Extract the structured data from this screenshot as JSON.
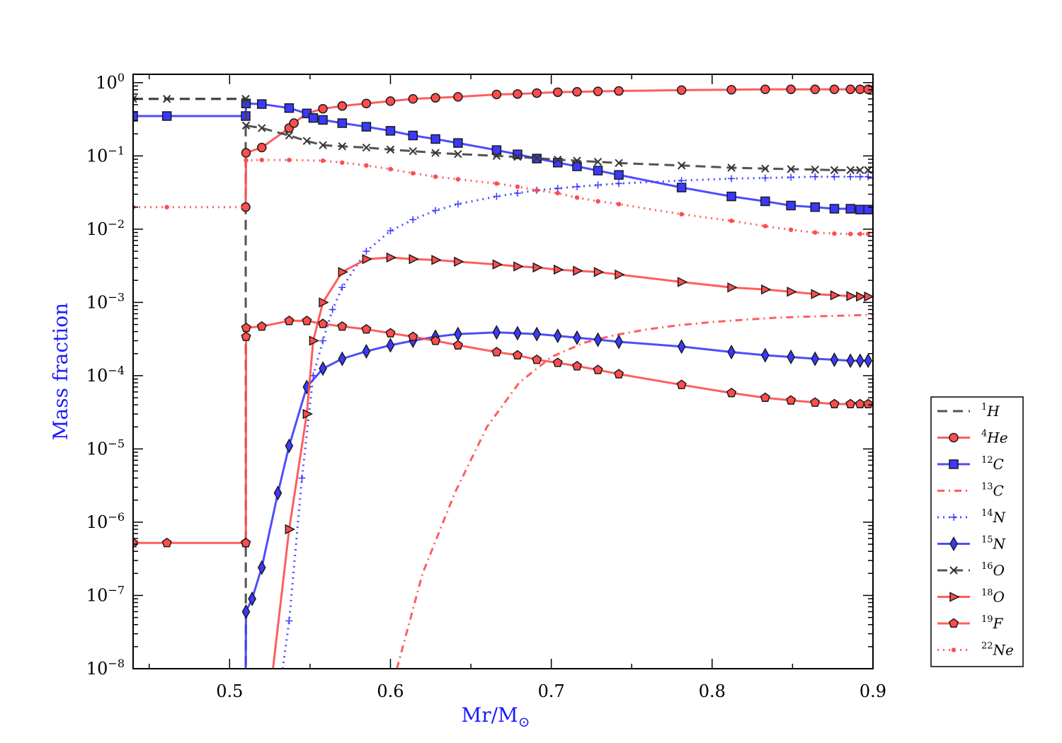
{
  "chart_data": {
    "type": "line",
    "title": "",
    "xlabel": "Mr/M",
    "xlabel_symbol": "⊙",
    "ylabel": "Mass fraction",
    "xlim": [
      0.44,
      0.9
    ],
    "ylim": [
      1e-08,
      1.3
    ],
    "yscale": "log",
    "x_ticks": [
      {
        "v": 0.5,
        "label": "0.5"
      },
      {
        "v": 0.6,
        "label": "0.6"
      },
      {
        "v": 0.7,
        "label": "0.7"
      },
      {
        "v": 0.8,
        "label": "0.8"
      },
      {
        "v": 0.9,
        "label": "0.9"
      }
    ],
    "y_ticks": [
      {
        "exp": 0,
        "label": "10"
      },
      {
        "exp": -1,
        "label": "10"
      },
      {
        "exp": -2,
        "label": "10"
      },
      {
        "exp": -3,
        "label": "10"
      },
      {
        "exp": -4,
        "label": "10"
      },
      {
        "exp": -5,
        "label": "10"
      },
      {
        "exp": -6,
        "label": "10"
      },
      {
        "exp": -7,
        "label": "10"
      },
      {
        "exp": -8,
        "label": "10"
      }
    ],
    "y_tick_exponents": [
      "0",
      "−1",
      "−2",
      "−3",
      "−4",
      "−5",
      "−6",
      "−7",
      "−8"
    ],
    "grid": false,
    "legend_position": "right",
    "series": [
      {
        "name": "H",
        "mass_number": "1",
        "color": "#404040",
        "dash": "dashed",
        "marker": "none",
        "x": [
          0.44,
          0.51,
          0.5101
        ],
        "y": [
          0.6,
          0.6,
          1e-08
        ]
      },
      {
        "name": "He",
        "mass_number": "4",
        "color": "#ff4d4d",
        "dash": "solid",
        "marker": "circle",
        "x": [
          0.51,
          0.5102,
          0.52,
          0.537,
          0.54,
          0.548,
          0.558,
          0.57,
          0.585,
          0.6,
          0.614,
          0.628,
          0.642,
          0.666,
          0.679,
          0.691,
          0.704,
          0.716,
          0.729,
          0.742,
          0.781,
          0.812,
          0.833,
          0.849,
          0.864,
          0.876,
          0.886,
          0.892,
          0.897
        ],
        "y": [
          0.02,
          0.11,
          0.13,
          0.24,
          0.28,
          0.38,
          0.44,
          0.48,
          0.52,
          0.56,
          0.6,
          0.62,
          0.64,
          0.69,
          0.7,
          0.72,
          0.74,
          0.75,
          0.76,
          0.77,
          0.79,
          0.8,
          0.81,
          0.81,
          0.81,
          0.81,
          0.81,
          0.81,
          0.81
        ]
      },
      {
        "name": "C",
        "mass_number": "12",
        "color": "#3a3aff",
        "dash": "solid",
        "marker": "square",
        "x": [
          0.44,
          0.461,
          0.51,
          0.5102,
          0.52,
          0.537,
          0.548,
          0.552,
          0.558,
          0.57,
          0.585,
          0.6,
          0.614,
          0.628,
          0.642,
          0.666,
          0.679,
          0.691,
          0.704,
          0.716,
          0.729,
          0.742,
          0.781,
          0.812,
          0.833,
          0.849,
          0.864,
          0.876,
          0.886,
          0.892,
          0.897
        ],
        "y": [
          0.35,
          0.35,
          0.35,
          0.52,
          0.51,
          0.45,
          0.38,
          0.33,
          0.31,
          0.28,
          0.25,
          0.22,
          0.19,
          0.17,
          0.15,
          0.12,
          0.105,
          0.092,
          0.081,
          0.072,
          0.063,
          0.055,
          0.037,
          0.028,
          0.024,
          0.021,
          0.02,
          0.019,
          0.019,
          0.0185,
          0.0185
        ]
      },
      {
        "name": "C",
        "mass_number": "13",
        "color": "#ff4d4d",
        "dash": "dashdot",
        "marker": "none",
        "x": [
          0.604,
          0.62,
          0.64,
          0.66,
          0.68,
          0.7,
          0.72,
          0.74,
          0.76,
          0.78,
          0.8,
          0.82,
          0.84,
          0.86,
          0.88,
          0.9
        ],
        "y": [
          1e-08,
          2e-07,
          2.5e-06,
          2e-05,
          8e-05,
          0.00018,
          0.00028,
          0.00036,
          0.00043,
          0.00049,
          0.00054,
          0.00058,
          0.00062,
          0.00064,
          0.00066,
          0.00068
        ]
      },
      {
        "name": "N",
        "mass_number": "14",
        "color": "#3a3aff",
        "dash": "dotted",
        "marker": "plus",
        "x": [
          0.533,
          0.537,
          0.545,
          0.552,
          0.558,
          0.564,
          0.57,
          0.585,
          0.6,
          0.614,
          0.628,
          0.642,
          0.666,
          0.679,
          0.691,
          0.704,
          0.716,
          0.729,
          0.742,
          0.781,
          0.812,
          0.833,
          0.849,
          0.864,
          0.876,
          0.886,
          0.892,
          0.897
        ],
        "y": [
          1e-08,
          4.5e-08,
          4e-06,
          0.0001,
          0.0003,
          0.0008,
          0.0016,
          0.005,
          0.0095,
          0.0135,
          0.018,
          0.022,
          0.028,
          0.031,
          0.034,
          0.036,
          0.038,
          0.04,
          0.042,
          0.046,
          0.049,
          0.05,
          0.051,
          0.052,
          0.052,
          0.052,
          0.052,
          0.052
        ]
      },
      {
        "name": "N",
        "mass_number": "15",
        "color": "#3a3aff",
        "dash": "solid",
        "marker": "diamond",
        "x": [
          0.51,
          0.5102,
          0.514,
          0.52,
          0.53,
          0.537,
          0.548,
          0.558,
          0.57,
          0.585,
          0.6,
          0.614,
          0.628,
          0.642,
          0.666,
          0.679,
          0.691,
          0.704,
          0.716,
          0.729,
          0.742,
          0.781,
          0.812,
          0.833,
          0.849,
          0.864,
          0.876,
          0.886,
          0.892,
          0.897
        ],
        "y": [
          1e-08,
          6e-08,
          9e-08,
          2.4e-07,
          2.5e-06,
          1.1e-05,
          7e-05,
          0.000125,
          0.00017,
          0.000215,
          0.00026,
          0.0003,
          0.00034,
          0.00037,
          0.00039,
          0.00038,
          0.00037,
          0.00035,
          0.00033,
          0.00031,
          0.00029,
          0.00025,
          0.00021,
          0.00019,
          0.00018,
          0.00017,
          0.000165,
          0.00016,
          0.00016,
          0.00016
        ]
      },
      {
        "name": "O",
        "mass_number": "16",
        "color": "#404040",
        "dash": "dashed",
        "marker": "x",
        "x": [
          0.44,
          0.461,
          0.51,
          0.5102,
          0.52,
          0.537,
          0.548,
          0.558,
          0.57,
          0.585,
          0.6,
          0.614,
          0.628,
          0.642,
          0.666,
          0.679,
          0.691,
          0.704,
          0.716,
          0.729,
          0.742,
          0.781,
          0.812,
          0.833,
          0.849,
          0.864,
          0.876,
          0.886,
          0.892,
          0.897
        ],
        "y": [
          0.6,
          0.6,
          0.6,
          0.26,
          0.24,
          0.19,
          0.16,
          0.14,
          0.135,
          0.13,
          0.122,
          0.116,
          0.11,
          0.106,
          0.1,
          0.097,
          0.093,
          0.089,
          0.086,
          0.083,
          0.08,
          0.074,
          0.069,
          0.067,
          0.066,
          0.065,
          0.064,
          0.064,
          0.064,
          0.064
        ]
      },
      {
        "name": "O",
        "mass_number": "18",
        "color": "#ff4d4d",
        "dash": "solid",
        "marker": "triangle-right",
        "x": [
          0.527,
          0.537,
          0.548,
          0.552,
          0.558,
          0.57,
          0.585,
          0.6,
          0.614,
          0.628,
          0.642,
          0.666,
          0.679,
          0.691,
          0.704,
          0.716,
          0.729,
          0.742,
          0.781,
          0.812,
          0.833,
          0.849,
          0.864,
          0.876,
          0.886,
          0.892,
          0.897
        ],
        "y": [
          1e-08,
          8e-07,
          3e-05,
          0.0003,
          0.001,
          0.0026,
          0.0039,
          0.0041,
          0.0039,
          0.0038,
          0.0036,
          0.0033,
          0.0031,
          0.003,
          0.0028,
          0.0027,
          0.0026,
          0.0024,
          0.0019,
          0.0016,
          0.0015,
          0.0014,
          0.0013,
          0.00125,
          0.00122,
          0.0012,
          0.0012
        ]
      },
      {
        "name": "F",
        "mass_number": "19",
        "color": "#ff4d4d",
        "dash": "solid",
        "marker": "pentagon",
        "x": [
          0.44,
          0.461,
          0.51,
          0.5101,
          0.5102,
          0.5103,
          0.52,
          0.537,
          0.548,
          0.558,
          0.57,
          0.585,
          0.6,
          0.614,
          0.628,
          0.642,
          0.666,
          0.679,
          0.691,
          0.704,
          0.716,
          0.729,
          0.742,
          0.781,
          0.812,
          0.833,
          0.849,
          0.864,
          0.876,
          0.886,
          0.892,
          0.897
        ],
        "y": [
          5.2e-07,
          5.2e-07,
          5.2e-07,
          5.2e-07,
          0.00034,
          0.00045,
          0.00047,
          0.00056,
          0.00056,
          0.00051,
          0.00047,
          0.00043,
          0.00038,
          0.00034,
          0.0003,
          0.00026,
          0.00021,
          0.00019,
          0.000165,
          0.00015,
          0.000135,
          0.00012,
          0.000105,
          7.5e-05,
          5.8e-05,
          5e-05,
          4.6e-05,
          4.3e-05,
          4.1e-05,
          4.1e-05,
          4.1e-05,
          4.1e-05
        ]
      },
      {
        "name": "Ne",
        "mass_number": "22",
        "color": "#ff4d4d",
        "dash": "dotted",
        "marker": "dot",
        "x": [
          0.44,
          0.461,
          0.51,
          0.5102,
          0.52,
          0.537,
          0.558,
          0.57,
          0.585,
          0.6,
          0.614,
          0.628,
          0.642,
          0.666,
          0.679,
          0.691,
          0.704,
          0.716,
          0.729,
          0.742,
          0.781,
          0.812,
          0.833,
          0.849,
          0.864,
          0.876,
          0.886,
          0.892,
          0.897
        ],
        "y": [
          0.02,
          0.02,
          0.02,
          0.087,
          0.088,
          0.088,
          0.086,
          0.081,
          0.074,
          0.066,
          0.058,
          0.052,
          0.048,
          0.042,
          0.038,
          0.034,
          0.031,
          0.027,
          0.024,
          0.022,
          0.016,
          0.013,
          0.011,
          0.0098,
          0.009,
          0.0087,
          0.0086,
          0.0086,
          0.0086
        ]
      }
    ]
  }
}
